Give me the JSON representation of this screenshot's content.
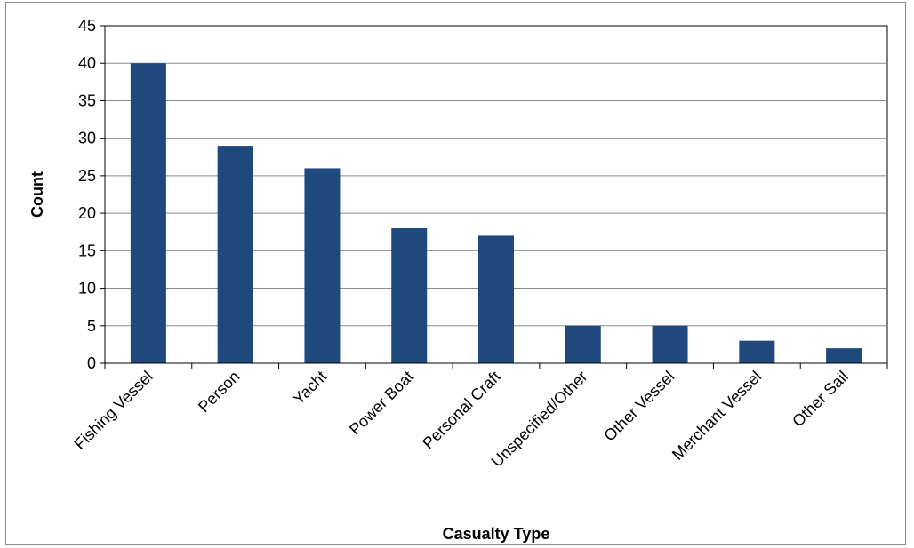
{
  "chart_data": {
    "type": "bar",
    "title": "",
    "xlabel": "Casualty Type",
    "ylabel": "Count",
    "categories": [
      "Fishing Vessel",
      "Person",
      "Yacht",
      "Power Boat",
      "Personal Craft",
      "Unspecified/Other",
      "Other Vessel",
      "Merchant Vessel",
      "Other Sail"
    ],
    "values": [
      40,
      29,
      26,
      18,
      17,
      5,
      5,
      3,
      2
    ],
    "ylim": [
      0,
      45
    ],
    "yticks": [
      0,
      5,
      10,
      15,
      20,
      25,
      30,
      35,
      40,
      45
    ],
    "grid": true,
    "legend": "none",
    "bar_color": "#1f497d"
  }
}
